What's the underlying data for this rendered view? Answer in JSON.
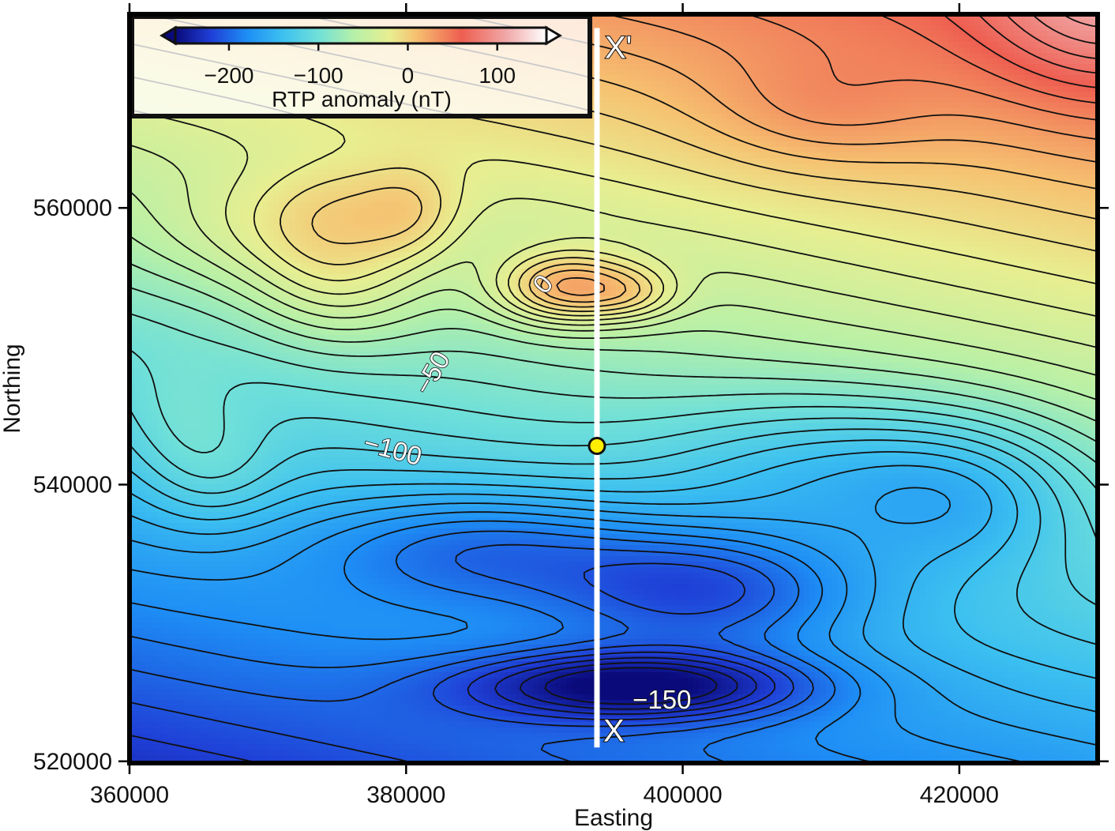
{
  "chart_data": {
    "type": "heatmap",
    "xlabel": "Easting",
    "ylabel": "Northing",
    "xlim": [
      360000,
      430000
    ],
    "ylim": [
      520000,
      574000
    ],
    "x_ticks": [
      {
        "value": 360000,
        "label": "360000"
      },
      {
        "value": 380000,
        "label": "380000"
      },
      {
        "value": 400000,
        "label": "400000"
      },
      {
        "value": 420000,
        "label": "420000"
      }
    ],
    "y_ticks": [
      {
        "value": 520000,
        "label": "520000"
      },
      {
        "value": 540000,
        "label": "540000"
      },
      {
        "value": 560000,
        "label": "560000"
      }
    ],
    "colorbar": {
      "label": "RTP anomaly (nT)",
      "range": [
        -260,
        155
      ],
      "ticks": [
        {
          "value": -200,
          "label": "−200"
        },
        {
          "value": -100,
          "label": "−100"
        },
        {
          "value": 0,
          "label": "0"
        },
        {
          "value": 100,
          "label": "100"
        }
      ],
      "placement": "top-left",
      "stops": [
        {
          "value": -260,
          "color": "#0a0a7a"
        },
        {
          "value": -220,
          "color": "#1f3fd6"
        },
        {
          "value": -180,
          "color": "#1e8ef5"
        },
        {
          "value": -140,
          "color": "#3cc0f0"
        },
        {
          "value": -100,
          "color": "#70e0d8"
        },
        {
          "value": -60,
          "color": "#b6f0a8"
        },
        {
          "value": -20,
          "color": "#e8ee90"
        },
        {
          "value": 10,
          "color": "#f6c070"
        },
        {
          "value": 60,
          "color": "#ee5e50"
        },
        {
          "value": 110,
          "color": "#f0a8a8"
        },
        {
          "value": 155,
          "color": "#ffffff"
        }
      ]
    },
    "contour_labels": [
      {
        "text": "0",
        "x": 390000,
        "y": 554400,
        "angle": -50
      },
      {
        "text": "−50",
        "x": 382000,
        "y": 548000,
        "angle": -60
      },
      {
        "text": "−100",
        "x": 379000,
        "y": 542400,
        "angle": 15
      },
      {
        "text": "−150",
        "x": 398500,
        "y": 524300,
        "angle": 0
      }
    ],
    "profile": {
      "x": 393800,
      "y_start": 521000,
      "y_end": 573000,
      "start_label": "X",
      "end_label": "X'"
    },
    "marker": {
      "x": 393800,
      "y": 542800,
      "color": "#ffee00"
    },
    "anomalies": [
      {
        "x": 391500,
        "y": 554200,
        "value": 75,
        "sx": 3500,
        "sy": 1800
      },
      {
        "x": 396500,
        "y": 553800,
        "value": 30,
        "sx": 2500,
        "sy": 1400
      },
      {
        "x": 375000,
        "y": 555000,
        "value": 40,
        "sx": 4500,
        "sy": 3500
      },
      {
        "x": 376000,
        "y": 560000,
        "value": 25,
        "sx": 5000,
        "sy": 2500
      },
      {
        "x": 380500,
        "y": 559500,
        "value": 20,
        "sx": 2500,
        "sy": 2500
      },
      {
        "x": 368000,
        "y": 558000,
        "value": 20,
        "sx": 6000,
        "sy": 3000
      },
      {
        "x": 430000,
        "y": 575000,
        "value": 45,
        "sx": 6000,
        "sy": 5000
      },
      {
        "x": 410000,
        "y": 567000,
        "value": 20,
        "sx": 6000,
        "sy": 3000
      },
      {
        "x": 397000,
        "y": 525500,
        "value": -95,
        "sx": 9000,
        "sy": 1800
      },
      {
        "x": 402000,
        "y": 532500,
        "value": -70,
        "sx": 8000,
        "sy": 3000
      },
      {
        "x": 386000,
        "y": 535500,
        "value": -55,
        "sx": 9000,
        "sy": 3000
      },
      {
        "x": 411000,
        "y": 541000,
        "value": -45,
        "sx": 9000,
        "sy": 4000
      },
      {
        "x": 421000,
        "y": 539000,
        "value": -40,
        "sx": 6000,
        "sy": 4000
      },
      {
        "x": 366000,
        "y": 541000,
        "value": 25,
        "sx": 3500,
        "sy": 3000
      },
      {
        "x": 363000,
        "y": 545000,
        "value": 15,
        "sx": 3000,
        "sy": 3000
      }
    ]
  }
}
